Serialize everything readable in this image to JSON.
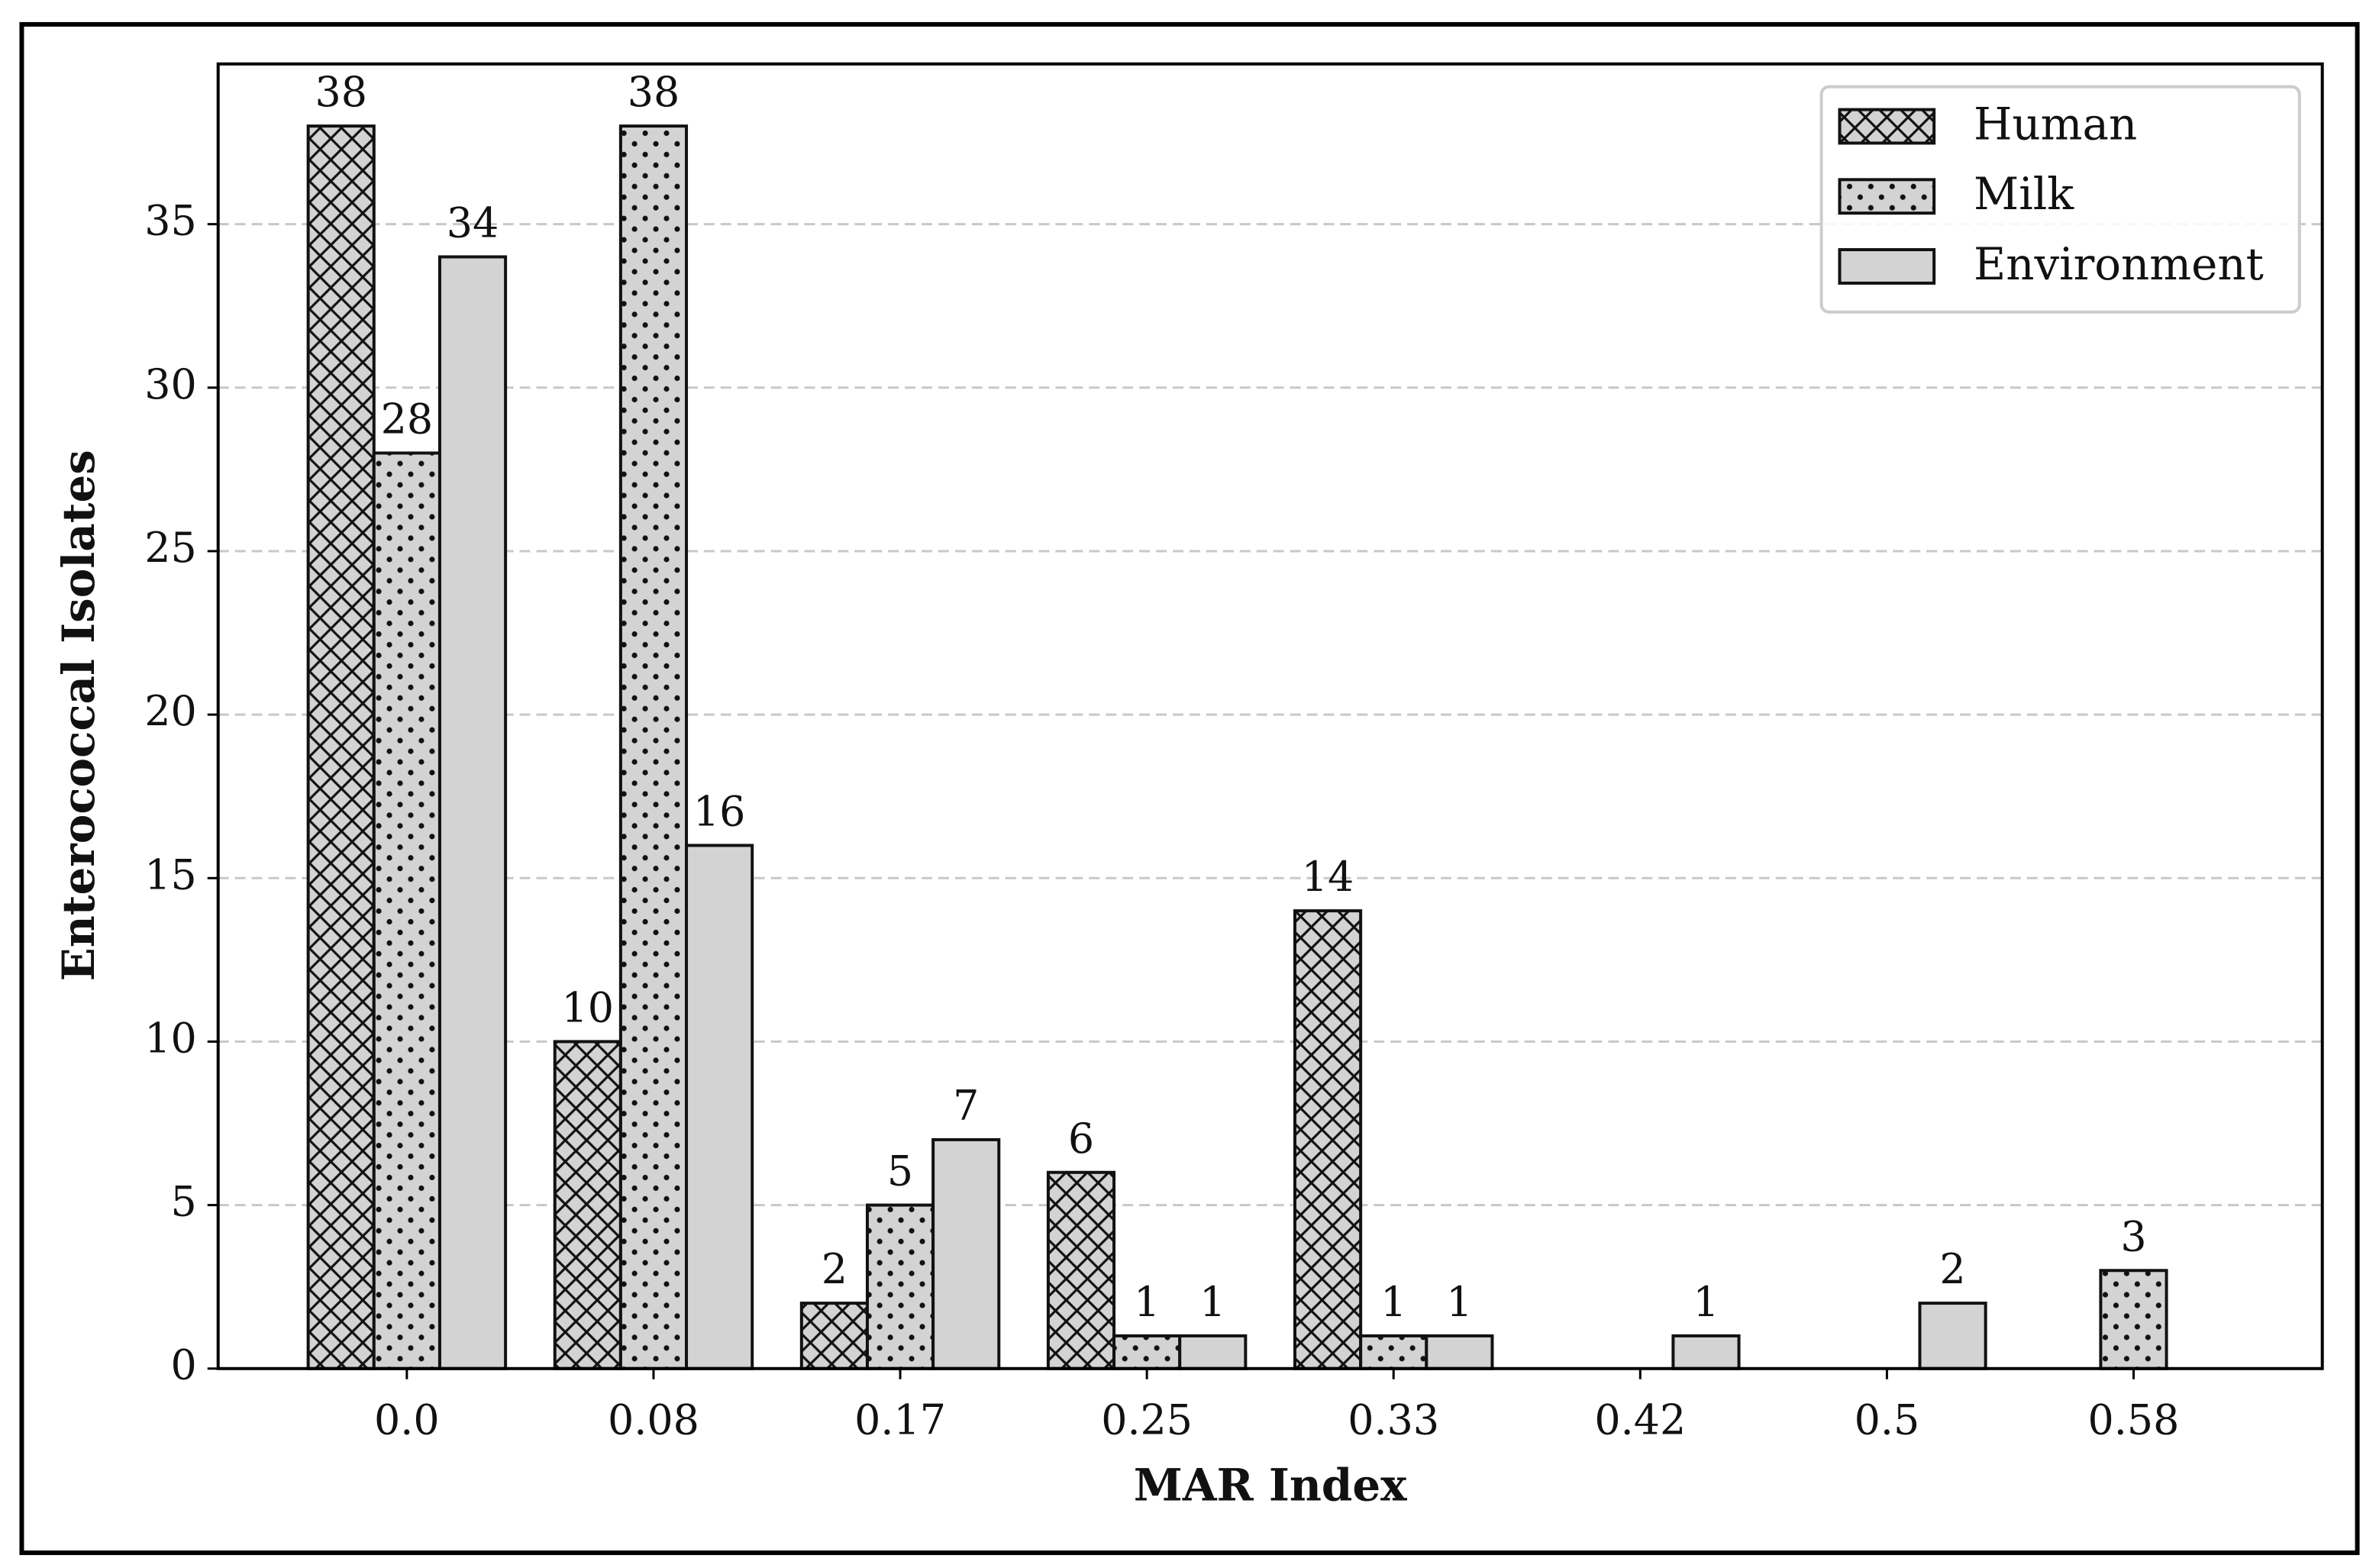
{
  "chart_data": {
    "type": "bar",
    "x_label": "MAR Index",
    "y_label": "Enterococcal Isolates",
    "categories": [
      "0.0",
      "0.08",
      "0.17",
      "0.25",
      "0.33",
      "0.42",
      "0.5",
      "0.58"
    ],
    "series": [
      {
        "name": "Human",
        "color": "#d3d3d3",
        "hatch": "crosshatch",
        "values": [
          38,
          10,
          2,
          6,
          14,
          0,
          0,
          0
        ]
      },
      {
        "name": "Milk",
        "color": "#d3d3d3",
        "hatch": "dots",
        "values": [
          28,
          38,
          5,
          1,
          1,
          0,
          0,
          3
        ]
      },
      {
        "name": "Environment",
        "color": "#d3d3d3",
        "hatch": "none",
        "values": [
          34,
          16,
          7,
          1,
          1,
          1,
          2,
          0
        ]
      }
    ],
    "ylim": [
      0,
      39.9
    ],
    "yticks": [
      0,
      5,
      10,
      15,
      20,
      25,
      30,
      35
    ],
    "grid": true,
    "legend": "upper right"
  }
}
